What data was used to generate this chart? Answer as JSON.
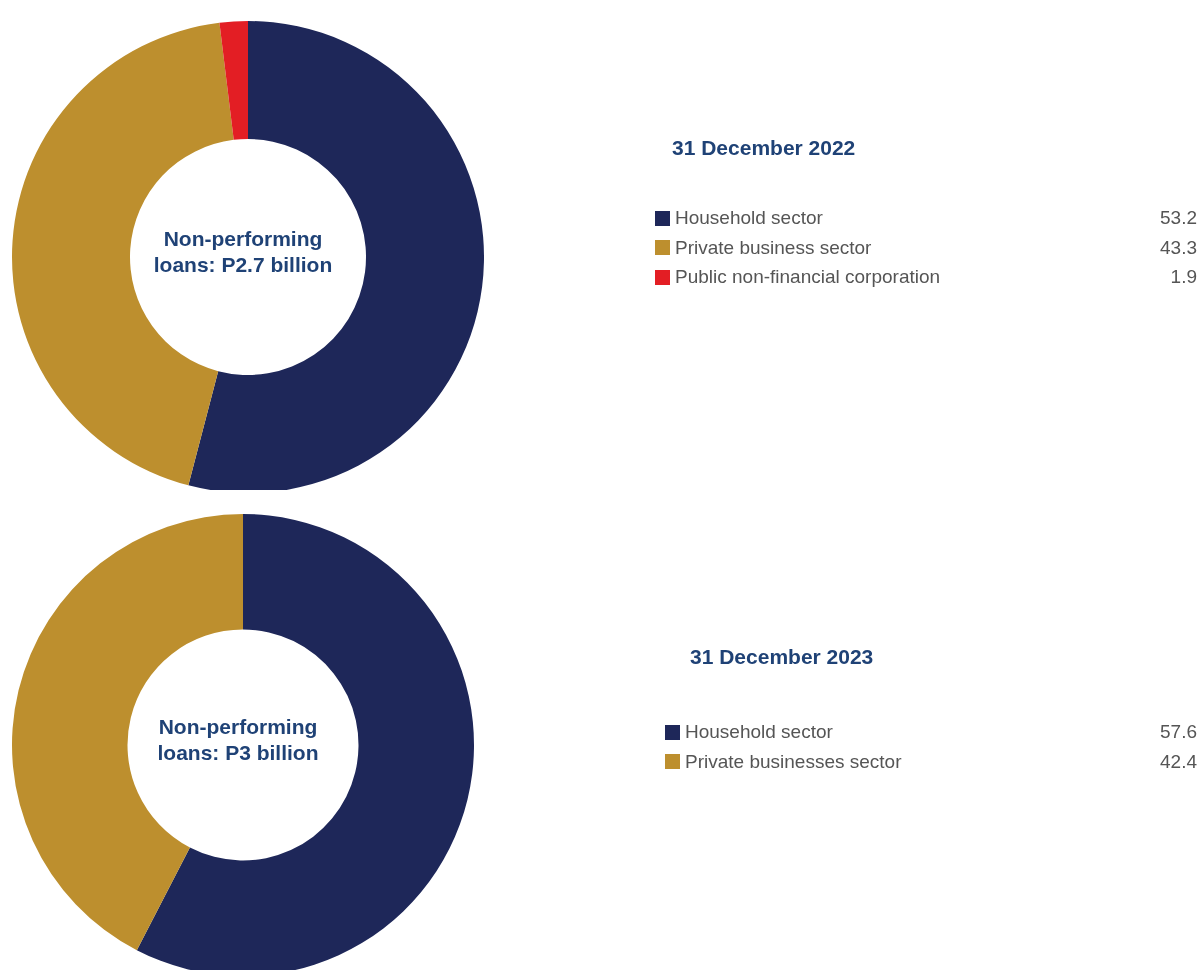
{
  "chart_data": [
    {
      "type": "donut",
      "title": "31 December 2022",
      "annotations": [
        "Non-performing loans: P2.7 billion"
      ],
      "categories": [
        "Household sector",
        "Private business sector",
        "Public non-financial corporation"
      ],
      "values": [
        53.2,
        43.3,
        1.9
      ],
      "colors": [
        "#1e2759",
        "#bd8f2e",
        "#e31e24"
      ],
      "legend": "right",
      "data_labels": true
    },
    {
      "type": "donut",
      "title": "31 December 2023",
      "annotations": [
        "Non-performing loans: P3 billion"
      ],
      "categories": [
        "Household sector",
        "Private businesses sector"
      ],
      "values": [
        57.6,
        42.4
      ],
      "colors": [
        "#1e2759",
        "#bd8f2e"
      ],
      "legend": "right",
      "data_labels": true
    }
  ]
}
